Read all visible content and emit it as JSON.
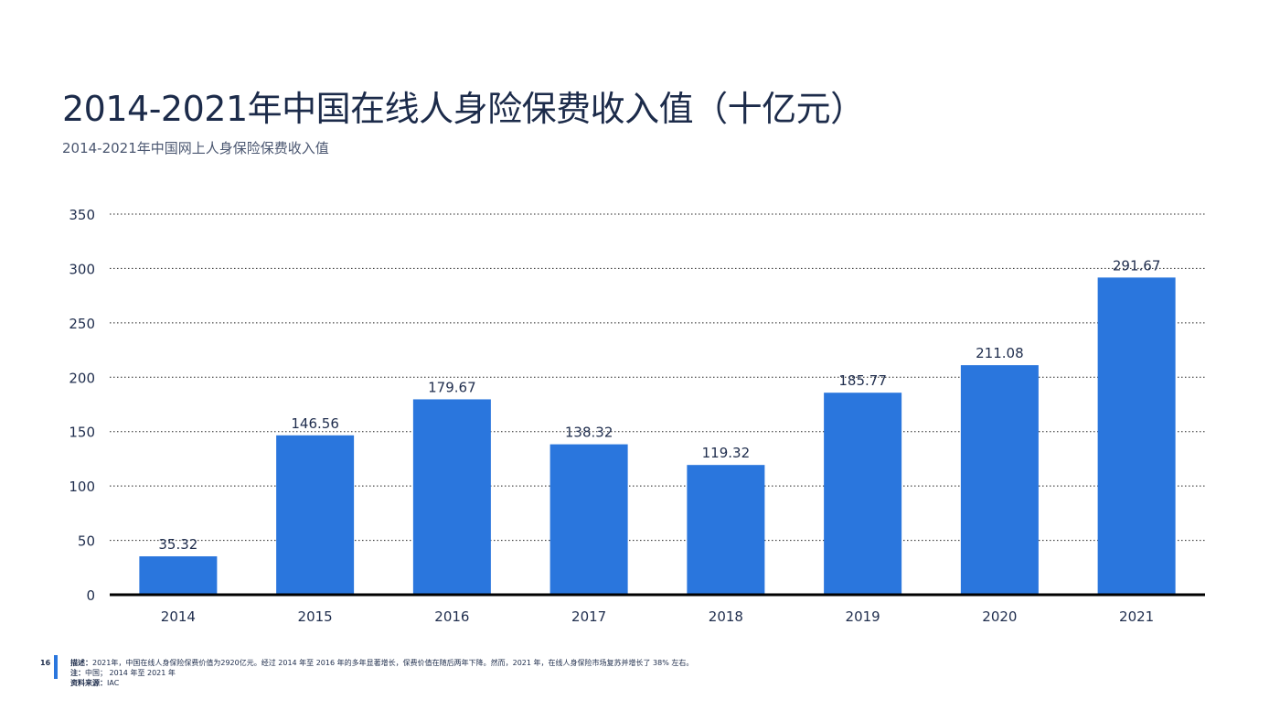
{
  "page": {
    "title": "2014-2021年中国在线人身险保费收入值（十亿元）",
    "subtitle": "2014-2021年中国网上人身保险保费收入值",
    "page_number": "16",
    "footer": {
      "desc_label": "描述：",
      "desc_text": "2021年，中国在线人身保险保费价值为2920亿元。经过 2014 年至 2016 年的多年显著增长，保费价值在随后两年下降。然而，2021 年，在线人身保险市场复苏并增长了 38% 左右。",
      "note_label": "注：",
      "note_text": "中国； 2014 年至 2021 年",
      "source_label": "资料来源：",
      "source_text": "IAC"
    }
  },
  "colors": {
    "bar": "#2a76dd",
    "grid": "#222222",
    "axis": "#000000",
    "text": "#1f2d4d"
  },
  "chart_data": {
    "type": "bar",
    "categories": [
      "2014",
      "2015",
      "2016",
      "2017",
      "2018",
      "2019",
      "2020",
      "2021"
    ],
    "values": [
      35.32,
      146.56,
      179.67,
      138.32,
      119.32,
      185.77,
      211.08,
      291.67
    ],
    "data_labels": [
      "35.32",
      "146.56",
      "179.67",
      "138.32",
      "119.32",
      "185.77",
      "211.08",
      "291.67"
    ],
    "ylim": [
      0,
      350
    ],
    "yticks": [
      0,
      50,
      100,
      150,
      200,
      250,
      300,
      350
    ],
    "grid": true,
    "grid_style": "dotted",
    "legend": "none"
  }
}
